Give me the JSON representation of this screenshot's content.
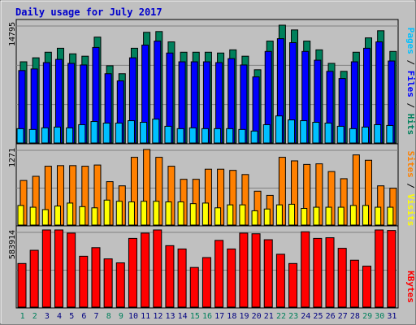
{
  "chart_data": {
    "type": "bar",
    "title": "Daily usage for July 2017",
    "categories": [
      "1",
      "2",
      "3",
      "4",
      "5",
      "6",
      "7",
      "8",
      "9",
      "10",
      "11",
      "12",
      "13",
      "14",
      "15",
      "16",
      "17",
      "18",
      "19",
      "20",
      "21",
      "22",
      "23",
      "24",
      "25",
      "26",
      "27",
      "28",
      "29",
      "30",
      "31"
    ],
    "weekend_days": [
      "1",
      "2",
      "8",
      "9",
      "15",
      "16",
      "22",
      "23",
      "29",
      "30"
    ],
    "panels": [
      {
        "max_label": "14795",
        "ylim": [
          0,
          14795
        ],
        "series": [
          {
            "name": "Hits",
            "values": [
              10200,
              10700,
              11400,
              11900,
              11200,
              10900,
              13300,
              9700,
              8700,
              11900,
              13900,
              14000,
              12700,
              11400,
              11400,
              11400,
              11300,
              11700,
              10900,
              9200,
              12800,
              14795,
              14200,
              12800,
              11700,
              10000,
              9000,
              11400,
              13200,
              14100,
              11500
            ]
          },
          {
            "name": "Files",
            "values": [
              9100,
              9300,
              10100,
              10500,
              10000,
              9800,
              12000,
              8700,
              7800,
              10700,
              12300,
              12800,
              11300,
              10200,
              10200,
              10200,
              10100,
              10600,
              9800,
              8300,
              11500,
              13100,
              12600,
              11500,
              10400,
              9000,
              8100,
              10200,
              11900,
              12700,
              10300
            ]
          },
          {
            "name": "Pages",
            "values": [
              1800,
              1700,
              1900,
              2000,
              1900,
              2300,
              2700,
              2500,
              2500,
              2800,
              2600,
              3000,
              2100,
              1800,
              1900,
              1800,
              1800,
              1800,
              1700,
              1500,
              2300,
              3400,
              2900,
              2800,
              2600,
              2500,
              2100,
              1800,
              2000,
              2300,
              2200
            ]
          }
        ]
      },
      {
        "max_label": "1271",
        "ylim": [
          0,
          1271
        ],
        "series": [
          {
            "name": "Visits",
            "values": [
              750,
              820,
              990,
              1000,
              1000,
              990,
              1010,
              730,
              660,
              1140,
              1271,
              1140,
              990,
              770,
              770,
              940,
              940,
              920,
              850,
              570,
              500,
              1140,
              1080,
              1020,
              1030,
              900,
              780,
              1180,
              1090,
              660,
              620
            ]
          },
          {
            "name": "Sites",
            "values": [
              330,
              300,
              260,
              320,
              370,
              310,
              290,
              420,
              400,
              390,
              400,
              400,
              390,
              390,
              360,
              370,
              290,
              340,
              340,
              240,
              270,
              340,
              350,
              280,
              300,
              300,
              300,
              330,
              330,
              300,
              300
            ]
          }
        ]
      },
      {
        "max_label": "583914",
        "ylim": [
          0,
          583914
        ],
        "series": [
          {
            "name": "KBytes",
            "values": [
              330000,
              430000,
              583914,
              583914,
              560000,
              385000,
              450000,
              365000,
              335000,
              520000,
              560000,
              583914,
              465000,
              440000,
              300000,
              375000,
              505000,
              440000,
              560000,
              555000,
              510000,
              400000,
              330000,
              570000,
              520000,
              525000,
              445000,
              355000,
              310000,
              583914,
              580000
            ]
          }
        ]
      }
    ],
    "legend": {
      "panel1": {
        "pages": "Pages",
        "files": "Files",
        "hits": "Hits",
        "sep": " / "
      },
      "panel2": {
        "sites": "Sites",
        "visits": "Visits",
        "sep": " / "
      },
      "panel3": {
        "kbytes": "KBytes"
      }
    },
    "colors": {
      "background": "#c0c0c0",
      "plot": "#c0c0c0",
      "title": "#0000cc",
      "hits": "#00805c",
      "files": "#0000ff",
      "pages": "#00c0ff",
      "visits": "#ff8000",
      "sites": "#ffff00",
      "kbytes": "#ff0000",
      "weekend_label": "#00805c",
      "weekday_label": "#000080"
    }
  }
}
